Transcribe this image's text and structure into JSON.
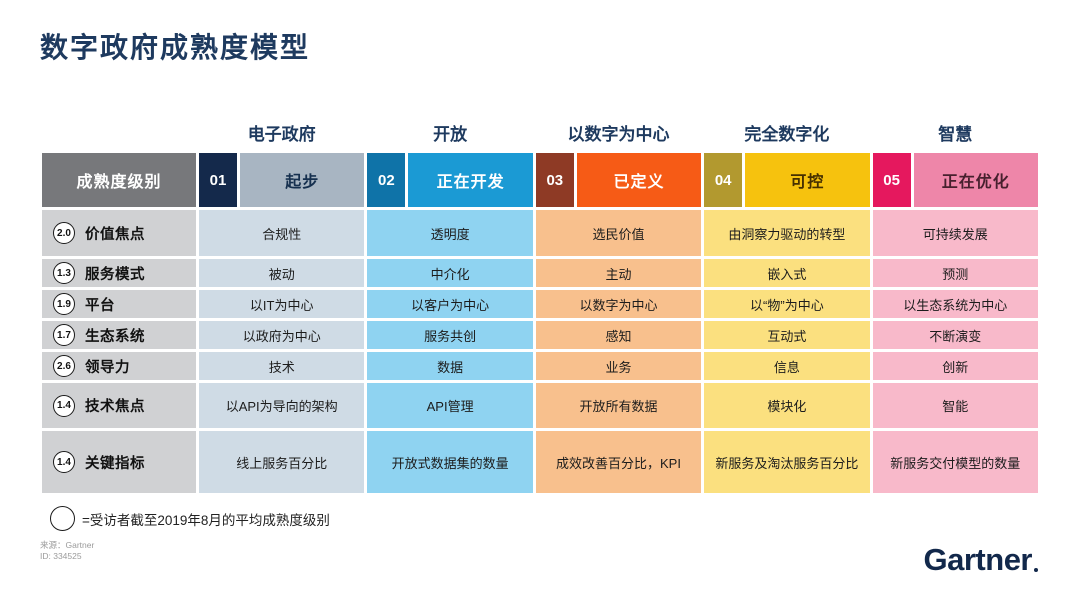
{
  "title": "数字政府成熟度模型",
  "table": {
    "corner_label": "成熟度级别",
    "categories": [
      "电子政府",
      "开放",
      "以数字为中心",
      "完全数字化",
      "智慧"
    ],
    "levels": [
      {
        "number": "01",
        "name": "起步"
      },
      {
        "number": "02",
        "name": "正在开发"
      },
      {
        "number": "03",
        "name": "已定义"
      },
      {
        "number": "04",
        "name": "可控"
      },
      {
        "number": "05",
        "name": "正在优化"
      }
    ],
    "rows": [
      {
        "score": "2.0",
        "dimension": "价值焦点",
        "cells": [
          "合规性",
          "透明度",
          "选民价值",
          "由洞察力驱动的转型",
          "可持续发展"
        ]
      },
      {
        "score": "1.3",
        "dimension": "服务模式",
        "cells": [
          "被动",
          "中介化",
          "主动",
          "嵌入式",
          "预测"
        ]
      },
      {
        "score": "1.9",
        "dimension": "平台",
        "cells": [
          "以IT为中心",
          "以客户为中心",
          "以数字为中心",
          "以“物”为中心",
          "以生态系统为中心"
        ]
      },
      {
        "score": "1.7",
        "dimension": "生态系统",
        "cells": [
          "以政府为中心",
          "服务共创",
          "感知",
          "互动式",
          "不断演变"
        ]
      },
      {
        "score": "2.6",
        "dimension": "领导力",
        "cells": [
          "技术",
          "数据",
          "业务",
          "信息",
          "创新"
        ]
      },
      {
        "score": "1.4",
        "dimension": "技术焦点",
        "cells": [
          "以API为导向的架构",
          "API管理",
          "开放所有数据",
          "模块化",
          "智能"
        ]
      },
      {
        "score": "1.4",
        "dimension": "关键指标",
        "cells": [
          "线上服务百分比",
          "开放式数据集的数量",
          "成效改善百分比，KPI",
          "新服务及淘汰服务百分比",
          "新服务交付模型的数量"
        ]
      }
    ]
  },
  "legend": {
    "text": "=受访者截至2019年8月的平均成熟度级别"
  },
  "source": {
    "line1": "来源：Gartner",
    "line2": "ID: 334525"
  },
  "logo": {
    "text": "Gartner"
  },
  "colors": {
    "title_navy": "#1e3a5f",
    "header_gray": "#77787b",
    "level1_dark": "#14294b",
    "level1_light": "#a8b5c2",
    "level1_body": "#cfdbe5",
    "level2_dark": "#0f73a8",
    "level2_light": "#1b9ad4",
    "level2_body": "#8fd3f1",
    "level3_dark": "#8e3a25",
    "level3_light": "#f65b16",
    "level3_body": "#f8c08d",
    "level4_dark": "#b2992f",
    "level4_light": "#f6c20e",
    "level4_body": "#fbe07f",
    "level5_dark": "#e5185e",
    "level5_light": "#ee86a9",
    "level5_body": "#f8b9ca",
    "dimension_gray": "#d0d1d3",
    "logo_navy": "#12284b"
  },
  "chart_data": {
    "type": "table",
    "title": "数字政府成熟度模型",
    "column_categories": [
      "电子政府",
      "开放",
      "以数字为中心",
      "完全数字化",
      "智慧"
    ],
    "columns": [
      "01 起步",
      "02 正在开发",
      "03 已定义",
      "04 可控",
      "05 正在优化"
    ],
    "row_dimensions": [
      "价值焦点",
      "服务模式",
      "平台",
      "生态系统",
      "领导力",
      "技术焦点",
      "关键指标"
    ],
    "average_maturity_scores": [
      2.0,
      1.3,
      1.9,
      1.7,
      2.6,
      1.4,
      1.4
    ],
    "matrix": [
      [
        "合规性",
        "透明度",
        "选民价值",
        "由洞察力驱动的转型",
        "可持续发展"
      ],
      [
        "被动",
        "中介化",
        "主动",
        "嵌入式",
        "预测"
      ],
      [
        "以IT为中心",
        "以客户为中心",
        "以数字为中心",
        "以“物”为中心",
        "以生态系统为中心"
      ],
      [
        "以政府为中心",
        "服务共创",
        "感知",
        "互动式",
        "不断演变"
      ],
      [
        "技术",
        "数据",
        "业务",
        "信息",
        "创新"
      ],
      [
        "以API为导向的架构",
        "API管理",
        "开放所有数据",
        "模块化",
        "智能"
      ],
      [
        "线上服务百分比",
        "开放式数据集的数量",
        "成效改善百分比，KPI",
        "新服务及淘汰服务百分比",
        "新服务交付模型的数量"
      ]
    ],
    "legend_note": "=受访者截至2019年8月的平均成熟度级别 (截至2019年8月)",
    "source": "Gartner, ID 334525"
  }
}
